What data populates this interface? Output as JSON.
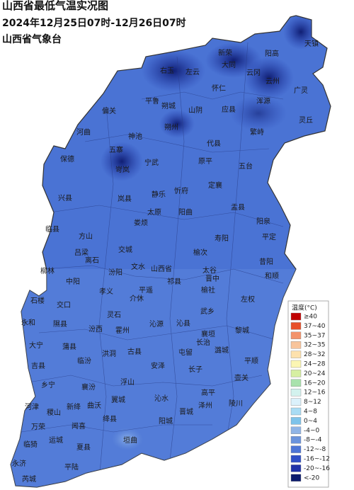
{
  "header": {
    "title": "山西省最低气温实况图",
    "subtitle": "2024年12月25日07时-12月26日07时",
    "source": "山西省气象台"
  },
  "legend": {
    "title": "温度(°C)",
    "items": [
      {
        "label": "≥40",
        "color": "#c00000"
      },
      {
        "label": "37~40",
        "color": "#e8502a"
      },
      {
        "label": "35~37",
        "color": "#f3926a"
      },
      {
        "label": "32~35",
        "color": "#f8c49b"
      },
      {
        "label": "28~32",
        "color": "#fde1ad"
      },
      {
        "label": "24~28",
        "color": "#fbf6b3"
      },
      {
        "label": "20~24",
        "color": "#d6efa2"
      },
      {
        "label": "16~20",
        "color": "#a9e2ad"
      },
      {
        "label": "12~16",
        "color": "#d3f2ee"
      },
      {
        "label": "8~12",
        "color": "#dbf1fb"
      },
      {
        "label": "4~8",
        "color": "#a9dcf4"
      },
      {
        "label": "0~4",
        "color": "#7ec3ea"
      },
      {
        "label": "-4~0",
        "color": "#8fb4e6"
      },
      {
        "label": "-8~-4",
        "color": "#6a93dc"
      },
      {
        "label": "-12~-8",
        "color": "#4d75d6"
      },
      {
        "label": "-16~-12",
        "color": "#2f4fc7"
      },
      {
        "label": "-20~-16",
        "color": "#1f31a8"
      },
      {
        "label": "<-20",
        "color": "#0b1a6d"
      }
    ]
  },
  "places": [
    "天镇",
    "阳高",
    "新荣",
    "右玉",
    "左云",
    "大同",
    "云冈",
    "云州",
    "怀仁",
    "广灵",
    "平鲁",
    "朔城",
    "山阴",
    "浑源",
    "应县",
    "偏关",
    "灵丘",
    "神池",
    "朔州",
    "繁峙",
    "河曲",
    "五寨",
    "代县",
    "宁武",
    "原平",
    "保德",
    "岢岚",
    "五台",
    "静乐",
    "忻府",
    "定襄",
    "兴县",
    "岚县",
    "盂县",
    "阳泉",
    "平定",
    "临县",
    "方山",
    "娄烦",
    "太原",
    "阳曲",
    "寿阳",
    "昔阳",
    "吕梁",
    "交城",
    "晋中",
    "榆次",
    "太谷",
    "和顺",
    "柳林",
    "离石",
    "汾阳",
    "文水",
    "山西省",
    "中阳",
    "孝义",
    "祁县",
    "榆社",
    "平遥",
    "石楼",
    "交口",
    "左权",
    "介休",
    "灵石",
    "武乡",
    "永和",
    "隰县",
    "汾西",
    "霍州",
    "沁源",
    "沁县",
    "黎城",
    "襄垣",
    "潞城",
    "长治",
    "屯留",
    "大宁",
    "蒲县",
    "古县",
    "洪洞",
    "临汾",
    "安泽",
    "长子",
    "平顺",
    "壶关",
    "吉县",
    "乡宁",
    "浮山",
    "襄汾",
    "高平",
    "陵川",
    "沁水",
    "泽州",
    "阳城",
    "晋城",
    "翼城",
    "新绛",
    "河津",
    "稷山",
    "曲沃",
    "绛县",
    "万荣",
    "闻喜",
    "垣曲",
    "临猗",
    "运城",
    "夏县",
    "永济",
    "平陆",
    "芮城"
  ]
}
